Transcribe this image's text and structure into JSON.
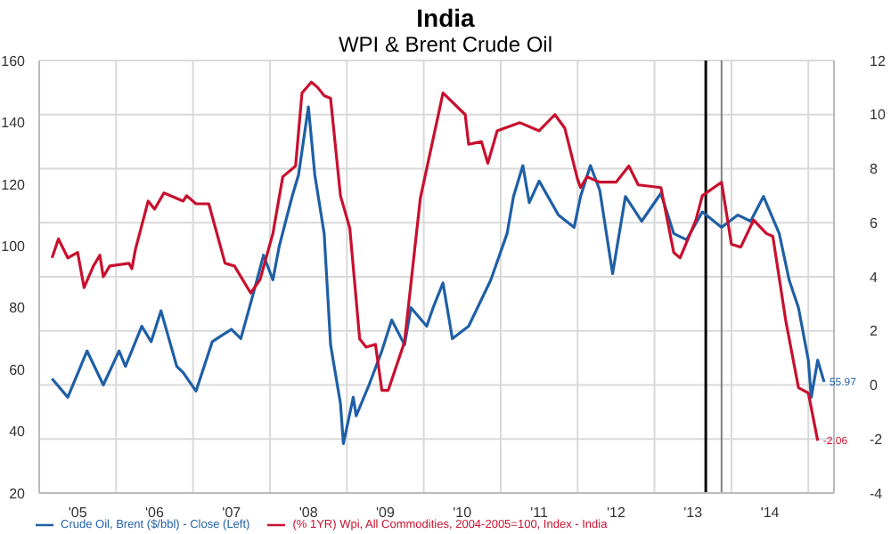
{
  "chart_data": {
    "type": "line",
    "title": "India",
    "subtitle": "WPI & Brent Crude Oil",
    "xlim": [
      "2005-01-01",
      "2015-05-01"
    ],
    "xticks": [
      {
        "value": "2005-07-01",
        "label": "'05"
      },
      {
        "value": "2006-07-01",
        "label": "'06"
      },
      {
        "value": "2007-07-01",
        "label": "'07"
      },
      {
        "value": "2008-07-01",
        "label": "'08"
      },
      {
        "value": "2009-07-01",
        "label": "'09"
      },
      {
        "value": "2010-07-01",
        "label": "'10"
      },
      {
        "value": "2011-07-01",
        "label": "'11"
      },
      {
        "value": "2012-07-01",
        "label": "'12"
      },
      {
        "value": "2013-07-01",
        "label": "'13"
      },
      {
        "value": "2014-07-01",
        "label": "'14"
      },
      {
        "value": "2006-01-01",
        "label": null
      },
      {
        "value": "2007-01-01",
        "label": null
      },
      {
        "value": "2008-01-01",
        "label": null
      },
      {
        "value": "2009-01-01",
        "label": null
      },
      {
        "value": "2010-01-01",
        "label": null
      },
      {
        "value": "2011-01-01",
        "label": null
      },
      {
        "value": "2012-01-01",
        "label": null
      },
      {
        "value": "2013-01-01",
        "label": null
      },
      {
        "value": "2014-01-01",
        "label": null
      },
      {
        "value": "2015-01-01",
        "label": null
      }
    ],
    "ylim": [
      20,
      160
    ],
    "yticks": [
      20,
      40,
      60,
      80,
      100,
      120,
      140,
      160
    ],
    "y2lim": [
      -4,
      12
    ],
    "y2ticks": [
      -4,
      -2,
      0,
      2,
      4,
      6,
      8,
      10,
      12
    ],
    "grid": true,
    "legend": "bottom",
    "marker": "none",
    "line_style": "solid",
    "ref_lines": [
      {
        "axis": "x",
        "value": "2013-09-01",
        "color": "#000000"
      },
      {
        "axis": "x",
        "value": "2013-11-15",
        "color": "#808080"
      }
    ],
    "series": [
      {
        "name": "Crude Oil, Brent ($/bbl) - Close  (Left)",
        "color": "#1f5fa6",
        "x": [
          "2005-03-01",
          "2005-05-15",
          "2005-08-15",
          "2005-11-01",
          "2006-01-15",
          "2006-02-15",
          "2006-05-01",
          "2006-06-15",
          "2006-08-01",
          "2006-10-15",
          "2006-11-15",
          "2007-01-15",
          "2007-04-01",
          "2007-07-01",
          "2007-08-15",
          "2007-10-15",
          "2007-12-01",
          "2008-01-15",
          "2008-02-15",
          "2008-04-15",
          "2008-05-15",
          "2008-07-01",
          "2008-08-01",
          "2008-09-15",
          "2008-10-15",
          "2008-12-01",
          "2008-12-15",
          "2009-02-01",
          "2009-02-15",
          "2009-04-15",
          "2009-06-15",
          "2009-08-01",
          "2009-10-01",
          "2009-11-01",
          "2010-01-15",
          "2010-02-15",
          "2010-04-01",
          "2010-05-15",
          "2010-08-01",
          "2010-11-15",
          "2011-02-01",
          "2011-03-01",
          "2011-04-15",
          "2011-05-15",
          "2011-07-01",
          "2011-10-01",
          "2011-12-15",
          "2012-01-15",
          "2012-03-01",
          "2012-04-15",
          "2012-06-15",
          "2012-08-15",
          "2012-11-01",
          "2013-02-01",
          "2013-04-01",
          "2013-06-01",
          "2013-08-15",
          "2013-11-15",
          "2014-02-01",
          "2014-04-01",
          "2014-06-01",
          "2014-08-15",
          "2014-10-01",
          "2014-11-15",
          "2015-01-01",
          "2015-01-15",
          "2015-02-15",
          "2015-03-15"
        ],
        "values": [
          57,
          51,
          66,
          55,
          66,
          61,
          74,
          69,
          79,
          61,
          59,
          53,
          69,
          73,
          70,
          85,
          97,
          89,
          100,
          116,
          123,
          145,
          123,
          104,
          68,
          49,
          36,
          51,
          45,
          55,
          66,
          76,
          68,
          80,
          74,
          80,
          88,
          70,
          74,
          89,
          104,
          116,
          126,
          114,
          121,
          110,
          106,
          116,
          126,
          118,
          91,
          116,
          108,
          117,
          104,
          102,
          111,
          106,
          110,
          108,
          116,
          104,
          89,
          80,
          63,
          51,
          63,
          55.97
        ],
        "value_labels": [
          null,
          null,
          null,
          null,
          null,
          null,
          null,
          null,
          null,
          null,
          null,
          null,
          null,
          null,
          null,
          null,
          null,
          null,
          null,
          null,
          null,
          null,
          null,
          null,
          null,
          null,
          null,
          null,
          null,
          null,
          null,
          null,
          null,
          null,
          null,
          null,
          null,
          null,
          null,
          null,
          null,
          null,
          null,
          null,
          null,
          null,
          null,
          null,
          null,
          null,
          null,
          null,
          null,
          null,
          null,
          null,
          null,
          null,
          null,
          null,
          null,
          null,
          null,
          null,
          null,
          null,
          null,
          "55.97"
        ]
      },
      {
        "name": "(% 1YR) Wpi, All Commodities, 2004-2005=100, Index - India",
        "color": "#c8102e",
        "axis": "y2",
        "x": [
          "2005-03-01",
          "2005-04-01",
          "2005-05-15",
          "2005-07-01",
          "2005-08-01",
          "2005-09-15",
          "2005-10-15",
          "2005-11-01",
          "2005-12-01",
          "2006-03-01",
          "2006-03-15",
          "2006-04-01",
          "2006-06-01",
          "2006-07-01",
          "2006-08-15",
          "2006-11-15",
          "2006-12-01",
          "2007-01-15",
          "2007-03-15",
          "2007-06-01",
          "2007-07-15",
          "2007-10-01",
          "2007-11-15",
          "2008-01-15",
          "2008-03-01",
          "2008-05-01",
          "2008-06-01",
          "2008-07-15",
          "2008-08-15",
          "2008-09-15",
          "2008-10-15",
          "2008-12-01",
          "2009-01-15",
          "2009-03-01",
          "2009-04-01",
          "2009-05-15",
          "2009-06-15",
          "2009-07-15",
          "2009-10-01",
          "2009-12-15",
          "2010-03-15",
          "2010-04-01",
          "2010-07-15",
          "2010-08-01",
          "2010-10-01",
          "2010-11-01",
          "2010-12-15",
          "2011-04-01",
          "2011-07-01",
          "2011-09-15",
          "2011-11-01",
          "2012-01-01",
          "2012-01-15",
          "2012-02-15",
          "2012-04-15",
          "2012-07-01",
          "2012-09-01",
          "2012-10-15",
          "2013-02-01",
          "2013-04-01",
          "2013-05-01",
          "2013-07-15",
          "2013-08-15",
          "2013-11-15",
          "2014-01-01",
          "2014-02-15",
          "2014-04-15",
          "2014-06-15",
          "2014-07-15",
          "2014-09-15",
          "2014-11-15",
          "2015-01-01",
          "2015-02-15"
        ],
        "values": [
          4.7,
          5.4,
          4.7,
          4.9,
          3.6,
          4.4,
          4.8,
          4.0,
          4.4,
          4.5,
          4.3,
          5.0,
          6.8,
          6.5,
          7.1,
          6.8,
          7.0,
          6.7,
          6.7,
          4.5,
          4.4,
          3.4,
          3.9,
          5.6,
          7.7,
          8.1,
          10.8,
          11.2,
          11.0,
          10.7,
          10.6,
          7.0,
          5.8,
          1.7,
          1.4,
          1.5,
          -0.2,
          -0.2,
          1.6,
          6.9,
          10.2,
          10.8,
          10.0,
          8.9,
          9.0,
          8.2,
          9.4,
          9.7,
          9.4,
          10.0,
          9.5,
          7.6,
          7.3,
          7.7,
          7.5,
          7.5,
          8.1,
          7.4,
          7.3,
          4.9,
          4.7,
          6.1,
          7.0,
          7.5,
          5.2,
          5.1,
          6.1,
          5.6,
          5.5,
          2.4,
          -0.1,
          -0.3,
          -2.06
        ],
        "value_labels": [
          null,
          null,
          null,
          null,
          null,
          null,
          null,
          null,
          null,
          null,
          null,
          null,
          null,
          null,
          null,
          null,
          null,
          null,
          null,
          null,
          null,
          null,
          null,
          null,
          null,
          null,
          null,
          null,
          null,
          null,
          null,
          null,
          null,
          null,
          null,
          null,
          null,
          null,
          null,
          null,
          null,
          null,
          null,
          null,
          null,
          null,
          null,
          null,
          null,
          null,
          null,
          null,
          null,
          null,
          null,
          null,
          null,
          null,
          null,
          null,
          null,
          null,
          null,
          null,
          null,
          null,
          null,
          null,
          null,
          null,
          null,
          null,
          "-2.06"
        ]
      }
    ]
  }
}
